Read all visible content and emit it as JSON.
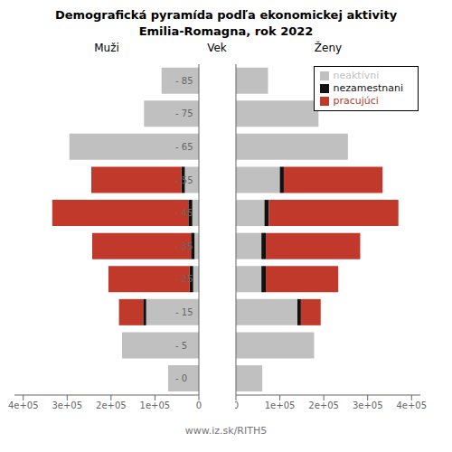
{
  "chart_data": [
    {
      "type": "bar",
      "title": "Demografická pyramída podľa ekonomickej aktivity",
      "subtitle": "Emilia-Romagna, rok 2022",
      "xlabel": "Muži",
      "ylabel": "Vek",
      "orientation": "horizontal",
      "stacked": true,
      "categories": [
        "- 0",
        "- 5",
        "- 15",
        "- 25",
        "- 35",
        "- 45",
        "- 55",
        "- 65",
        "- 75",
        "- 85"
      ],
      "series": [
        {
          "name": "neaktívni",
          "color": "#c0c0c0",
          "values": [
            70000,
            175000,
            120000,
            13000,
            10000,
            15000,
            32000,
            295000,
            125000,
            85000
          ]
        },
        {
          "name": "nezamestnani",
          "color": "#111111",
          "values": [
            0,
            0,
            7000,
            8000,
            8000,
            9000,
            8000,
            0,
            0,
            0
          ]
        },
        {
          "name": "pracujúci",
          "color": "#c0392b",
          "values": [
            0,
            0,
            55000,
            185000,
            225000,
            310000,
            205000,
            0,
            0,
            0
          ]
        }
      ],
      "xlim": [
        0,
        420000
      ],
      "xticks": [
        0,
        {
          "value": 100000,
          "label": "1e+05"
        },
        {
          "value": 200000,
          "label": "2e+05"
        },
        {
          "value": 300000,
          "label": "3e+05"
        },
        {
          "value": 400000,
          "label": "4e+05"
        }
      ]
    },
    {
      "type": "bar",
      "xlabel": "Ženy",
      "orientation": "horizontal",
      "stacked": true,
      "tick_labels": "x",
      "legend": "upper right",
      "annotations": [
        "www.iz.sk/RITH5"
      ],
      "categories": [
        "- 0",
        "- 5",
        "- 15",
        "- 25",
        "- 35",
        "- 45",
        "- 55",
        "- 65",
        "- 75",
        "- 85"
      ],
      "series": [
        {
          "name": "neaktívni",
          "color": "#c0c0c0",
          "values": [
            60000,
            178000,
            140000,
            58000,
            58000,
            65000,
            100000,
            255000,
            188000,
            73000
          ]
        },
        {
          "name": "nezamestnani",
          "color": "#111111",
          "values": [
            0,
            0,
            8000,
            10000,
            10000,
            10000,
            9000,
            0,
            0,
            0
          ]
        },
        {
          "name": "pracujúci",
          "color": "#c0392b",
          "values": [
            0,
            0,
            45000,
            165000,
            215000,
            295000,
            225000,
            0,
            0,
            0
          ]
        }
      ],
      "xlim": [
        0,
        420000
      ],
      "xticks": [
        0,
        {
          "value": 100000,
          "label": "1e+05"
        },
        {
          "value": 200000,
          "label": "2e+05"
        },
        {
          "value": 300000,
          "label": "3e+05"
        },
        {
          "value": 400000,
          "label": "4e+05"
        }
      ]
    }
  ]
}
